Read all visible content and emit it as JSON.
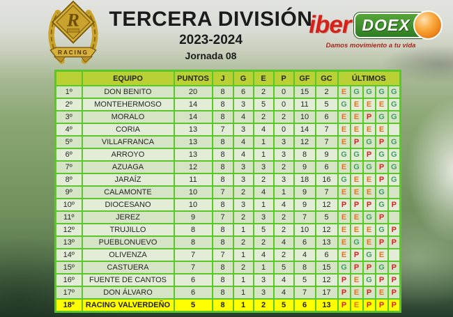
{
  "header": {
    "title": "TERCERA DIVISIÓN",
    "season": "2023-2024",
    "round": "Jornada 08",
    "crest": {
      "monogram": "R",
      "banner": "RACING"
    },
    "sponsor": {
      "brand_left": "iber",
      "brand_right": "DOEX",
      "tagline": "Damos movimiento a tu vida"
    }
  },
  "colors": {
    "grid_green": "#5bc629",
    "header_bg": "#b9d134",
    "row_odd": "#d6e4c6",
    "row_even": "#e2ecd7",
    "badge_bg": "#fcfef7",
    "highlight_row": "#ffff00",
    "result_E": "#e8721c",
    "result_G": "#3ba05f",
    "result_P": "#e01f1f",
    "sponsor_red": "#d62119",
    "sponsor_green": "#2e7d22",
    "crest_gold": "#c9a227"
  },
  "chart_data": {
    "type": "table",
    "title": "TERCERA DIVISIÓN",
    "subtitle": "2023-2024",
    "round": "Jornada 08",
    "columns": [
      "EQUIPO",
      "PUNTOS",
      "J",
      "G",
      "E",
      "P",
      "GF",
      "GC",
      "ÚLTIMOS"
    ],
    "rows": [
      {
        "pos": "1º",
        "team": "DON BENITO",
        "pts": "20",
        "j": "8",
        "g": "6",
        "e": "2",
        "p": "0",
        "gf": "15",
        "gc": "2",
        "last": [
          "E",
          "G",
          "G",
          "G",
          "G"
        ],
        "highlight": false
      },
      {
        "pos": "2º",
        "team": "MONTEHERMOSO",
        "pts": "14",
        "j": "8",
        "g": "3",
        "e": "5",
        "p": "0",
        "gf": "11",
        "gc": "5",
        "last": [
          "G",
          "E",
          "E",
          "E",
          "G"
        ],
        "highlight": false
      },
      {
        "pos": "3º",
        "team": "MORALO",
        "pts": "14",
        "j": "8",
        "g": "4",
        "e": "2",
        "p": "2",
        "gf": "10",
        "gc": "6",
        "last": [
          "E",
          "E",
          "P",
          "G",
          "G"
        ],
        "highlight": false
      },
      {
        "pos": "4º",
        "team": "CORIA",
        "pts": "13",
        "j": "7",
        "g": "3",
        "e": "4",
        "p": "0",
        "gf": "14",
        "gc": "7",
        "last": [
          "E",
          "E",
          "E",
          "E",
          ""
        ],
        "highlight": false
      },
      {
        "pos": "5º",
        "team": "VILLAFRANCA",
        "pts": "13",
        "j": "8",
        "g": "4",
        "e": "1",
        "p": "3",
        "gf": "12",
        "gc": "7",
        "last": [
          "E",
          "P",
          "G",
          "P",
          "G"
        ],
        "highlight": false
      },
      {
        "pos": "6º",
        "team": "ARROYO",
        "pts": "13",
        "j": "8",
        "g": "4",
        "e": "1",
        "p": "3",
        "gf": "8",
        "gc": "9",
        "last": [
          "G",
          "G",
          "P",
          "G",
          "G"
        ],
        "highlight": false
      },
      {
        "pos": "7º",
        "team": "AZUAGA",
        "pts": "12",
        "j": "8",
        "g": "3",
        "e": "3",
        "p": "2",
        "gf": "9",
        "gc": "6",
        "last": [
          "E",
          "G",
          "G",
          "P",
          "G"
        ],
        "highlight": false
      },
      {
        "pos": "8º",
        "team": "JARAÍZ",
        "pts": "11",
        "j": "8",
        "g": "3",
        "e": "2",
        "p": "3",
        "gf": "18",
        "gc": "16",
        "last": [
          "G",
          "E",
          "E",
          "P",
          "G"
        ],
        "highlight": false
      },
      {
        "pos": "9º",
        "team": "CALAMONTE",
        "pts": "10",
        "j": "7",
        "g": "2",
        "e": "4",
        "p": "1",
        "gf": "9",
        "gc": "7",
        "last": [
          "E",
          "E",
          "E",
          "G",
          ""
        ],
        "highlight": false
      },
      {
        "pos": "10º",
        "team": "DIOCESANO",
        "pts": "10",
        "j": "8",
        "g": "3",
        "e": "1",
        "p": "4",
        "gf": "9",
        "gc": "12",
        "last": [
          "P",
          "P",
          "P",
          "G",
          "P"
        ],
        "highlight": false
      },
      {
        "pos": "11º",
        "team": "JEREZ",
        "pts": "9",
        "j": "7",
        "g": "2",
        "e": "3",
        "p": "2",
        "gf": "7",
        "gc": "5",
        "last": [
          "E",
          "E",
          "G",
          "P",
          ""
        ],
        "highlight": false
      },
      {
        "pos": "12º",
        "team": "TRUJILLO",
        "pts": "8",
        "j": "8",
        "g": "1",
        "e": "5",
        "p": "2",
        "gf": "10",
        "gc": "12",
        "last": [
          "E",
          "E",
          "E",
          "G",
          "P"
        ],
        "highlight": false
      },
      {
        "pos": "13º",
        "team": "PUEBLONUEVO",
        "pts": "8",
        "j": "8",
        "g": "2",
        "e": "2",
        "p": "4",
        "gf": "6",
        "gc": "13",
        "last": [
          "E",
          "G",
          "E",
          "P",
          "P"
        ],
        "highlight": false
      },
      {
        "pos": "14º",
        "team": "OLIVENZA",
        "pts": "7",
        "j": "7",
        "g": "1",
        "e": "4",
        "p": "2",
        "gf": "4",
        "gc": "6",
        "last": [
          "E",
          "P",
          "G",
          "E",
          ""
        ],
        "highlight": false
      },
      {
        "pos": "15º",
        "team": "CASTUERA",
        "pts": "7",
        "j": "8",
        "g": "2",
        "e": "1",
        "p": "5",
        "gf": "8",
        "gc": "15",
        "last": [
          "G",
          "P",
          "P",
          "G",
          "P"
        ],
        "highlight": false
      },
      {
        "pos": "16º",
        "team": "FUENTE DE CANTOS",
        "pts": "6",
        "j": "8",
        "g": "1",
        "e": "3",
        "p": "4",
        "gf": "5",
        "gc": "12",
        "last": [
          "P",
          "E",
          "G",
          "P",
          "P"
        ],
        "highlight": false
      },
      {
        "pos": "17º",
        "team": "DON ÁLVARO",
        "pts": "6",
        "j": "8",
        "g": "1",
        "e": "3",
        "p": "4",
        "gf": "7",
        "gc": "17",
        "last": [
          "P",
          "E",
          "P",
          "E",
          "P"
        ],
        "highlight": false
      },
      {
        "pos": "18º",
        "team": "RACING VALVERDEÑO",
        "pts": "5",
        "j": "8",
        "g": "1",
        "e": "2",
        "p": "5",
        "gf": "6",
        "gc": "13",
        "last": [
          "P",
          "E",
          "P",
          "P",
          "P"
        ],
        "highlight": true
      }
    ]
  }
}
